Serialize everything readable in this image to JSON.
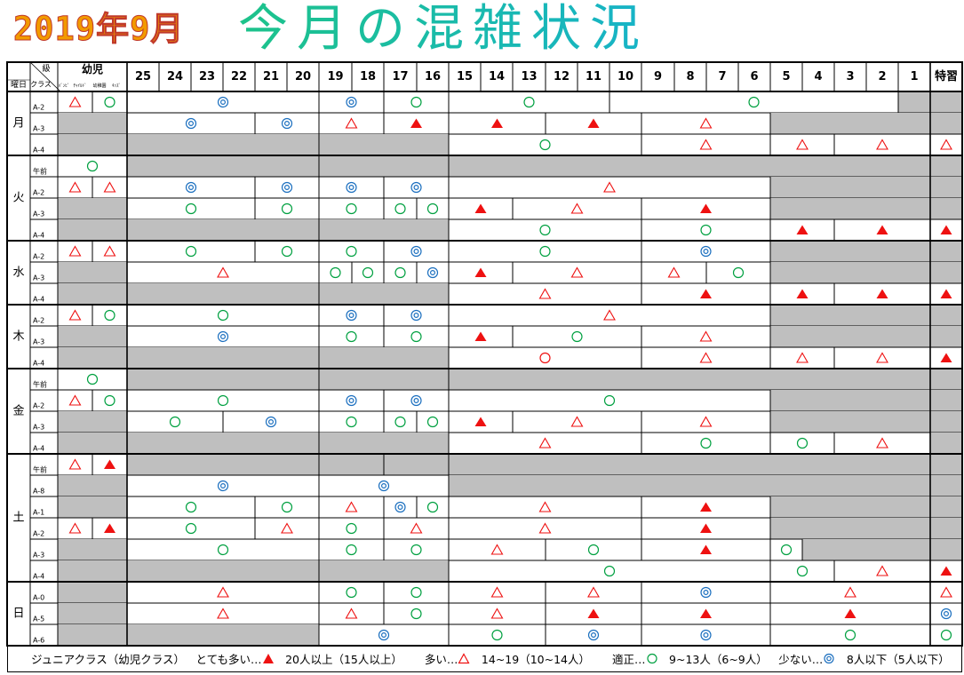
{
  "title": {
    "year_month": "2019年9月",
    "main": "今月の混雑状況"
  },
  "header": {
    "corner_top": "級",
    "corner_left": "曜日",
    "corner_mid": "クラス",
    "kids": "幼児",
    "kids_sub": [
      "ﾊﾞﾝﾋﾞ",
      "ﾁｬｲﾙﾄﾞ",
      "幼稚園",
      "ｷｯｽﾞ"
    ],
    "dates": [
      "25",
      "24",
      "23",
      "22",
      "21",
      "20",
      "19",
      "18",
      "17",
      "16",
      "15",
      "14",
      "13",
      "12",
      "11",
      "10",
      "9",
      "8",
      "7",
      "6",
      "5",
      "4",
      "3",
      "2",
      "1"
    ],
    "special": "特習"
  },
  "days": [
    "月",
    "火",
    "水",
    "木",
    "金",
    "土",
    "日"
  ],
  "day_spans": [
    [
      0,
      2
    ],
    [
      3,
      6
    ],
    [
      7,
      9
    ],
    [
      10,
      12
    ],
    [
      13,
      16
    ],
    [
      17,
      22
    ],
    [
      23,
      25
    ]
  ],
  "rows": [
    {
      "label": "A-2",
      "kids": [
        [
          "t"
        ],
        [
          "o"
        ]
      ],
      "s": [
        [
          "o2",
          0,
          6
        ],
        [
          "o2",
          6,
          8
        ],
        [
          "o",
          8,
          10
        ],
        [
          "o",
          10,
          15
        ],
        [
          "o",
          15,
          24
        ],
        [
          "g",
          24,
          25
        ]
      ]
    },
    {
      "label": "A-3",
      "kids": "g",
      "s": [
        [
          "o2",
          0,
          4
        ],
        [
          "o2",
          4,
          6
        ],
        [
          "t",
          6,
          8
        ],
        [
          "T",
          8,
          10
        ],
        [
          "T",
          10,
          13
        ],
        [
          "T",
          13,
          16
        ],
        [
          "t",
          16,
          20
        ],
        [
          "g",
          20,
          25
        ]
      ]
    },
    {
      "label": "A-4",
      "kids": "g",
      "s": [
        [
          "g",
          0,
          6
        ],
        [
          "g",
          6,
          10
        ],
        [
          "o",
          10,
          16
        ],
        [
          "t",
          16,
          20
        ],
        [
          "t",
          20,
          22
        ],
        [
          "t",
          22,
          25
        ]
      ]
    },
    {
      "label": "午前",
      "kids": [
        [
          "o",
          2
        ]
      ],
      "s": [
        [
          "g",
          0,
          6
        ],
        [
          "g",
          6,
          10
        ],
        [
          "g",
          10,
          25
        ]
      ]
    },
    {
      "label": "A-2",
      "kids": [
        [
          "t"
        ],
        [
          "t"
        ]
      ],
      "s": [
        [
          "o2",
          0,
          4
        ],
        [
          "o2",
          4,
          6
        ],
        [
          "o2",
          6,
          8
        ],
        [
          "o2",
          8,
          10
        ],
        [
          "t",
          10,
          20
        ],
        [
          "g",
          20,
          25
        ]
      ]
    },
    {
      "label": "A-3",
      "kids": "g",
      "s": [
        [
          "o",
          0,
          4
        ],
        [
          "o",
          4,
          6
        ],
        [
          "o",
          6,
          8
        ],
        [
          "o",
          8,
          9
        ],
        [
          "o",
          9,
          10
        ],
        [
          "T",
          10,
          12
        ],
        [
          "t",
          12,
          16
        ],
        [
          "T",
          16,
          20
        ],
        [
          "g",
          20,
          25
        ]
      ]
    },
    {
      "label": "A-4",
      "kids": "g",
      "s": [
        [
          "g",
          0,
          6
        ],
        [
          "g",
          6,
          10
        ],
        [
          "o",
          10,
          16
        ],
        [
          "o",
          16,
          20
        ],
        [
          "T",
          20,
          22
        ],
        [
          "T",
          22,
          25
        ]
      ]
    },
    {
      "label": "A-2",
      "kids": [
        [
          "t"
        ],
        [
          "t"
        ]
      ],
      "s": [
        [
          "o",
          0,
          4
        ],
        [
          "o",
          4,
          6
        ],
        [
          "o",
          6,
          8
        ],
        [
          "o2",
          8,
          10
        ],
        [
          "o",
          10,
          16
        ],
        [
          "o2",
          16,
          20
        ],
        [
          "g",
          20,
          25
        ]
      ]
    },
    {
      "label": "A-3",
      "kids": "g",
      "s": [
        [
          "t",
          0,
          6
        ],
        [
          "o",
          6,
          7
        ],
        [
          "o",
          7,
          8
        ],
        [
          "o",
          8,
          9
        ],
        [
          "o2",
          9,
          10
        ],
        [
          "T",
          10,
          12
        ],
        [
          "t",
          12,
          16
        ],
        [
          "t",
          16,
          18
        ],
        [
          "o",
          18,
          20
        ],
        [
          "g",
          20,
          25
        ]
      ]
    },
    {
      "label": "A-4",
      "kids": "g",
      "s": [
        [
          "g",
          0,
          6
        ],
        [
          "g",
          6,
          10
        ],
        [
          "t",
          10,
          16
        ],
        [
          "T",
          16,
          20
        ],
        [
          "T",
          20,
          22
        ],
        [
          "T",
          22,
          25
        ]
      ]
    },
    {
      "label": "A-2",
      "kids": [
        [
          "t"
        ],
        [
          "o"
        ]
      ],
      "s": [
        [
          "o",
          0,
          6
        ],
        [
          "o2",
          6,
          8
        ],
        [
          "o2",
          8,
          10
        ],
        [
          "t",
          10,
          20
        ],
        [
          "g",
          20,
          25
        ]
      ]
    },
    {
      "label": "A-3",
      "kids": "g",
      "s": [
        [
          "o2",
          0,
          6
        ],
        [
          "o",
          6,
          8
        ],
        [
          "o",
          8,
          10
        ],
        [
          "T",
          10,
          12
        ],
        [
          "o",
          12,
          16
        ],
        [
          "t",
          16,
          20
        ],
        [
          "g",
          20,
          25
        ]
      ]
    },
    {
      "label": "A-4",
      "kids": "g",
      "s": [
        [
          "g",
          0,
          6
        ],
        [
          "g",
          6,
          10
        ],
        [
          "or",
          10,
          16
        ],
        [
          "t",
          16,
          20
        ],
        [
          "t",
          20,
          22
        ],
        [
          "t",
          22,
          25
        ]
      ]
    },
    {
      "label": "午前",
      "kids": [
        [
          "o",
          2
        ]
      ],
      "s": [
        [
          "g",
          0,
          6
        ],
        [
          "g",
          6,
          10
        ],
        [
          "g",
          10,
          25
        ]
      ]
    },
    {
      "label": "A-2",
      "kids": [
        [
          "t"
        ],
        [
          "o"
        ]
      ],
      "s": [
        [
          "o",
          0,
          6
        ],
        [
          "o2",
          6,
          8
        ],
        [
          "o2",
          8,
          10
        ],
        [
          "o",
          10,
          20
        ],
        [
          "g",
          20,
          25
        ]
      ]
    },
    {
      "label": "A-3",
      "kids": "g",
      "s": [
        [
          "o",
          0,
          3
        ],
        [
          "o2",
          3,
          6
        ],
        [
          "o",
          6,
          8
        ],
        [
          "o",
          8,
          9
        ],
        [
          "o",
          9,
          10
        ],
        [
          "T",
          10,
          12
        ],
        [
          "t",
          12,
          16
        ],
        [
          "t",
          16,
          20
        ],
        [
          "g",
          20,
          25
        ]
      ]
    },
    {
      "label": "A-4",
      "kids": "g",
      "s": [
        [
          "g",
          0,
          6
        ],
        [
          "g",
          6,
          10
        ],
        [
          "t",
          10,
          16
        ],
        [
          "o",
          16,
          20
        ],
        [
          "o",
          20,
          22
        ],
        [
          "t",
          22,
          25
        ]
      ]
    },
    {
      "label": "午前",
      "kids": [
        [
          "t"
        ],
        [
          "T"
        ]
      ],
      "s": [
        [
          "g",
          0,
          6
        ],
        [
          "g",
          6,
          8
        ],
        [
          "g",
          8,
          10
        ],
        [
          "g",
          10,
          25
        ]
      ]
    },
    {
      "label": "A-8",
      "kids": "g",
      "s": [
        [
          "o2",
          0,
          6
        ],
        [
          "o2",
          6,
          10
        ],
        [
          "g",
          10,
          25
        ]
      ]
    },
    {
      "label": "A-1",
      "kids": "g",
      "s": [
        [
          "o",
          0,
          4
        ],
        [
          "o",
          4,
          6
        ],
        [
          "t",
          6,
          8
        ],
        [
          "o2",
          8,
          9
        ],
        [
          "o",
          9,
          10
        ],
        [
          "t",
          10,
          16
        ],
        [
          "T",
          16,
          20
        ],
        [
          "g",
          20,
          25
        ]
      ]
    },
    {
      "label": "A-2",
      "kids": [
        [
          "t"
        ],
        [
          "T"
        ]
      ],
      "s": [
        [
          "o",
          0,
          4
        ],
        [
          "t",
          4,
          6
        ],
        [
          "o",
          6,
          8
        ],
        [
          "t",
          8,
          10
        ],
        [
          "t",
          10,
          16
        ],
        [
          "T",
          16,
          20
        ],
        [
          "g",
          20,
          25
        ]
      ]
    },
    {
      "label": "A-3",
      "kids": "g",
      "s": [
        [
          "o",
          0,
          6
        ],
        [
          "o",
          6,
          8
        ],
        [
          "o",
          8,
          10
        ],
        [
          "t",
          10,
          13
        ],
        [
          "o",
          13,
          16
        ],
        [
          "T",
          16,
          20
        ],
        [
          "o",
          20,
          21
        ],
        [
          "g",
          21,
          25
        ]
      ]
    },
    {
      "label": "A-4",
      "kids": "g",
      "s": [
        [
          "g",
          0,
          6
        ],
        [
          "g",
          6,
          10
        ],
        [
          "o",
          10,
          20
        ],
        [
          "o",
          20,
          22
        ],
        [
          "t",
          22,
          25
        ]
      ]
    },
    {
      "label": "A-0",
      "kids": "g",
      "s": [
        [
          "t",
          0,
          6
        ],
        [
          "o",
          6,
          8
        ],
        [
          "o",
          8,
          10
        ],
        [
          "t",
          10,
          13
        ],
        [
          "t",
          13,
          16
        ],
        [
          "o2",
          16,
          20
        ],
        [
          "t",
          20,
          25
        ]
      ]
    },
    {
      "label": "A-5",
      "kids": "g",
      "s": [
        [
          "t",
          0,
          6
        ],
        [
          "t",
          6,
          8
        ],
        [
          "o",
          8,
          10
        ],
        [
          "t",
          10,
          13
        ],
        [
          "T",
          13,
          16
        ],
        [
          "T",
          16,
          20
        ],
        [
          "T",
          20,
          25
        ]
      ]
    },
    {
      "label": "A-6",
      "kids": "g",
      "s": [
        [
          "g",
          0,
          6
        ],
        [
          "o2",
          6,
          10
        ],
        [
          "o",
          10,
          13
        ],
        [
          "o2",
          13,
          16
        ],
        [
          "o2",
          16,
          20
        ],
        [
          "o",
          20,
          25
        ]
      ]
    }
  ],
  "special_col": [
    "g",
    "g",
    "t",
    "g",
    "g",
    "g",
    "T",
    "g",
    "g",
    "T",
    "g",
    "g",
    "T",
    "g",
    "g",
    "g",
    "g",
    "g",
    "g",
    "g",
    "g",
    "g",
    "T",
    "t",
    "o2",
    "o"
  ],
  "legend": {
    "intro": "ジュニアクラス（幼児クラス）",
    "very_busy_label": "とても多い…",
    "very_busy_text": "20人以上（15人以上）",
    "busy_label": "多い…",
    "busy_text": "14~19（10~14人）",
    "normal_label": "適正…",
    "normal_text": "9~13人（6~9人）",
    "few_label": "少ない…",
    "few_text": "8人以下（5人以下）"
  },
  "colors": {
    "gray": "#bfbfbf",
    "red": "#ee1111",
    "green": "#00a040",
    "blue": "#1b6fbf"
  }
}
